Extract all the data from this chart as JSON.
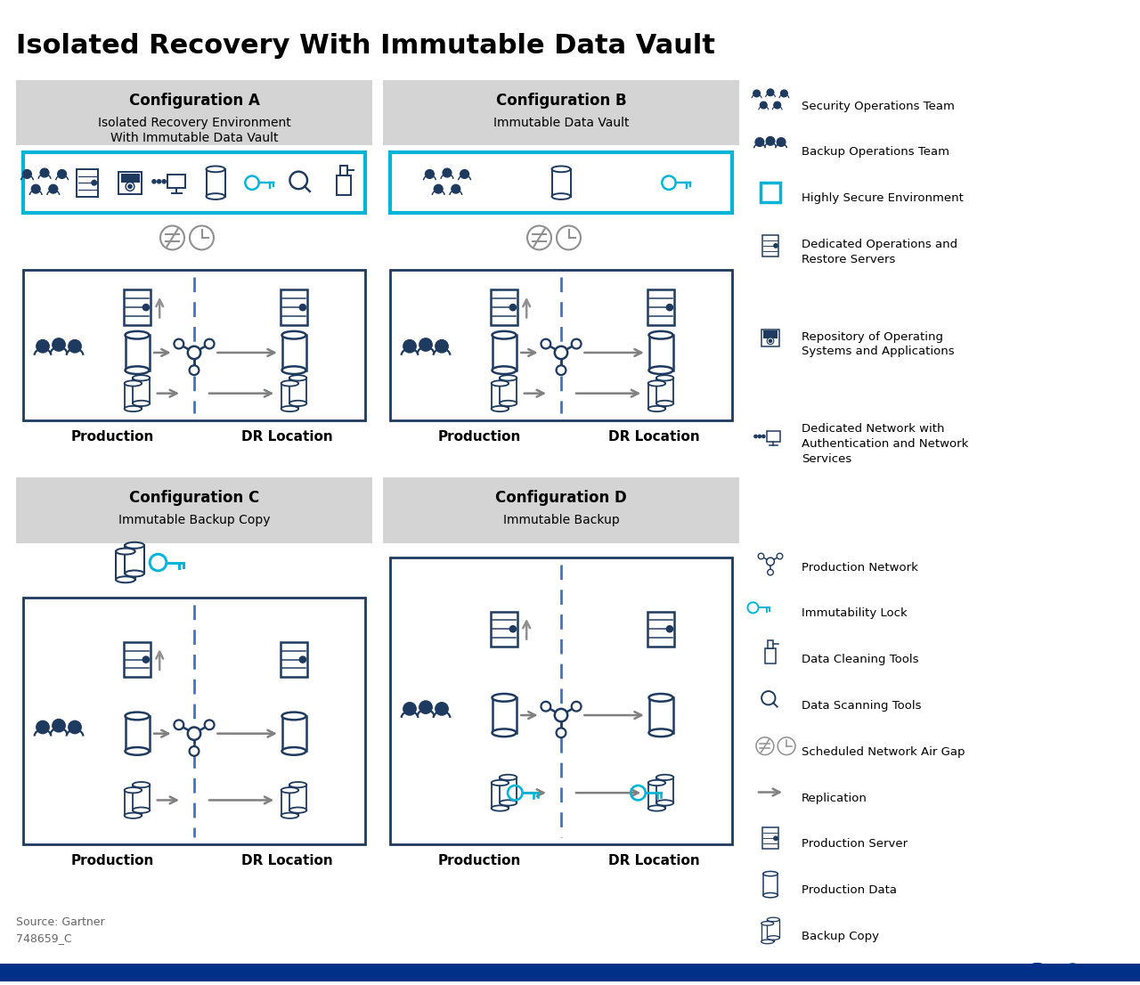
{
  "title": "Isolated Recovery With Immutable Data Vault",
  "title_fontsize": 22,
  "bg_color": "#ffffff",
  "dark_blue": "#1e3a5f",
  "light_blue": "#00b4d8",
  "gray_bg": "#d4d4d4",
  "source_text": "Source: Gartner",
  "code_text": "748659_C"
}
